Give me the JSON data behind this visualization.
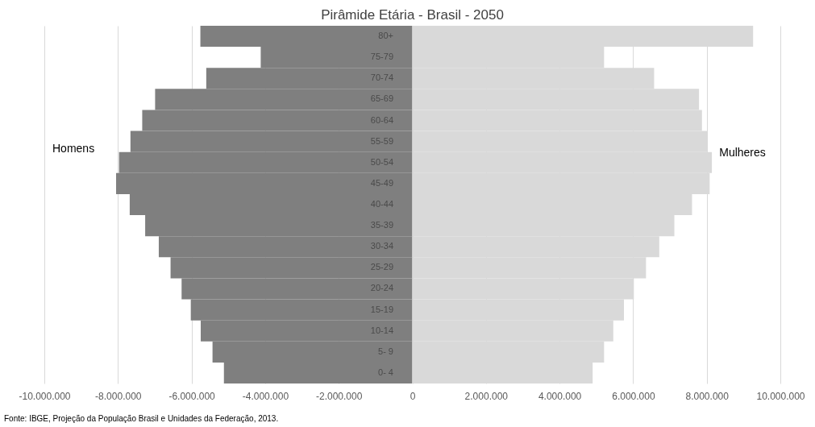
{
  "chart_data": {
    "type": "bar",
    "orientation": "horizontal",
    "stacked": true,
    "title": "Pirâmide Etária - Brasil - 2050",
    "categories": [
      "80+",
      "75-79",
      "70-74",
      "65-69",
      "60-64",
      "55-59",
      "50-54",
      "45-49",
      "40-44",
      "35-39",
      "30-34",
      "25-29",
      "20-24",
      "15-19",
      "10-14",
      "5- 9",
      "0- 4"
    ],
    "series": [
      {
        "name": "Homens",
        "color": "#7f7f7f",
        "values": [
          -5760000,
          -4120000,
          -5600000,
          -6990000,
          -7340000,
          -7660000,
          -7970000,
          -8050000,
          -7680000,
          -7260000,
          -6890000,
          -6570000,
          -6270000,
          -6020000,
          -5750000,
          -5430000,
          -5120000
        ]
      },
      {
        "name": "Mulheres",
        "color": "#d9d9d9",
        "values": [
          9260000,
          5210000,
          6570000,
          7790000,
          7870000,
          8010000,
          8140000,
          8080000,
          7600000,
          7120000,
          6710000,
          6350000,
          6020000,
          5750000,
          5460000,
          5210000,
          4900000
        ]
      }
    ],
    "xlim": [
      -10000000,
      10000000
    ],
    "xticks": [
      {
        "value": -10000000,
        "label": "-10.000.000"
      },
      {
        "value": -8000000,
        "label": "-8.000.000"
      },
      {
        "value": -6000000,
        "label": "-6.000.000"
      },
      {
        "value": -4000000,
        "label": "-4.000.000"
      },
      {
        "value": -2000000,
        "label": "-2.000.000"
      },
      0,
      {
        "value": 2000000,
        "label": "2.000.000"
      },
      {
        "value": 4000000,
        "label": "4.000.000"
      },
      {
        "value": 6000000,
        "label": "6.000.000"
      },
      {
        "value": 8000000,
        "label": "8.000.000"
      },
      {
        "value": 10000000,
        "label": "10.000.000"
      }
    ],
    "grid": "x",
    "legend": false,
    "annotations": [
      "Fonte: IBGE, Projeção da População Brasil e Unidades da Federação, 2013."
    ]
  }
}
